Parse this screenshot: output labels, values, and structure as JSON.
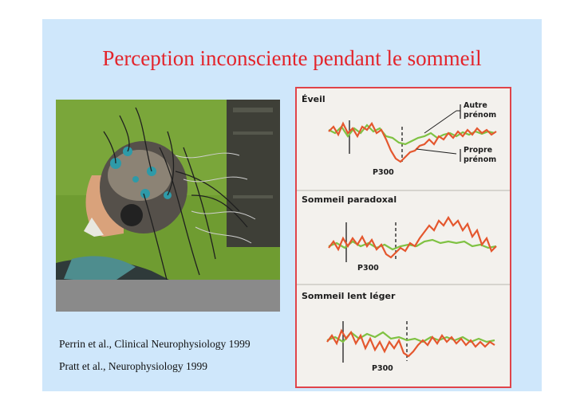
{
  "slide": {
    "title": "Perception inconsciente pendant le sommeil",
    "background_color": "#cfe7fb",
    "title_color": "#e3242b"
  },
  "photo": {
    "description_icon": "eeg-cap-photo"
  },
  "references": [
    "Perrin et al., Clinical Neurophysiology 1999",
    "Pratt et al., Neurophysiology 1999"
  ],
  "eeg_figure": {
    "border_color": "#e0444a",
    "trace_colors": {
      "propre_prenom": "#e4572e",
      "autre_prenom": "#7fc243"
    },
    "panels": [
      {
        "title": "Éveil",
        "p300": "P300",
        "legend_autre": [
          "Autre",
          "prénom"
        ],
        "legend_propre": [
          "Propre",
          "prénom"
        ]
      },
      {
        "title": "Sommeil paradoxal",
        "p300": "P300"
      },
      {
        "title": "Sommeil lent léger",
        "p300": "P300"
      }
    ]
  }
}
